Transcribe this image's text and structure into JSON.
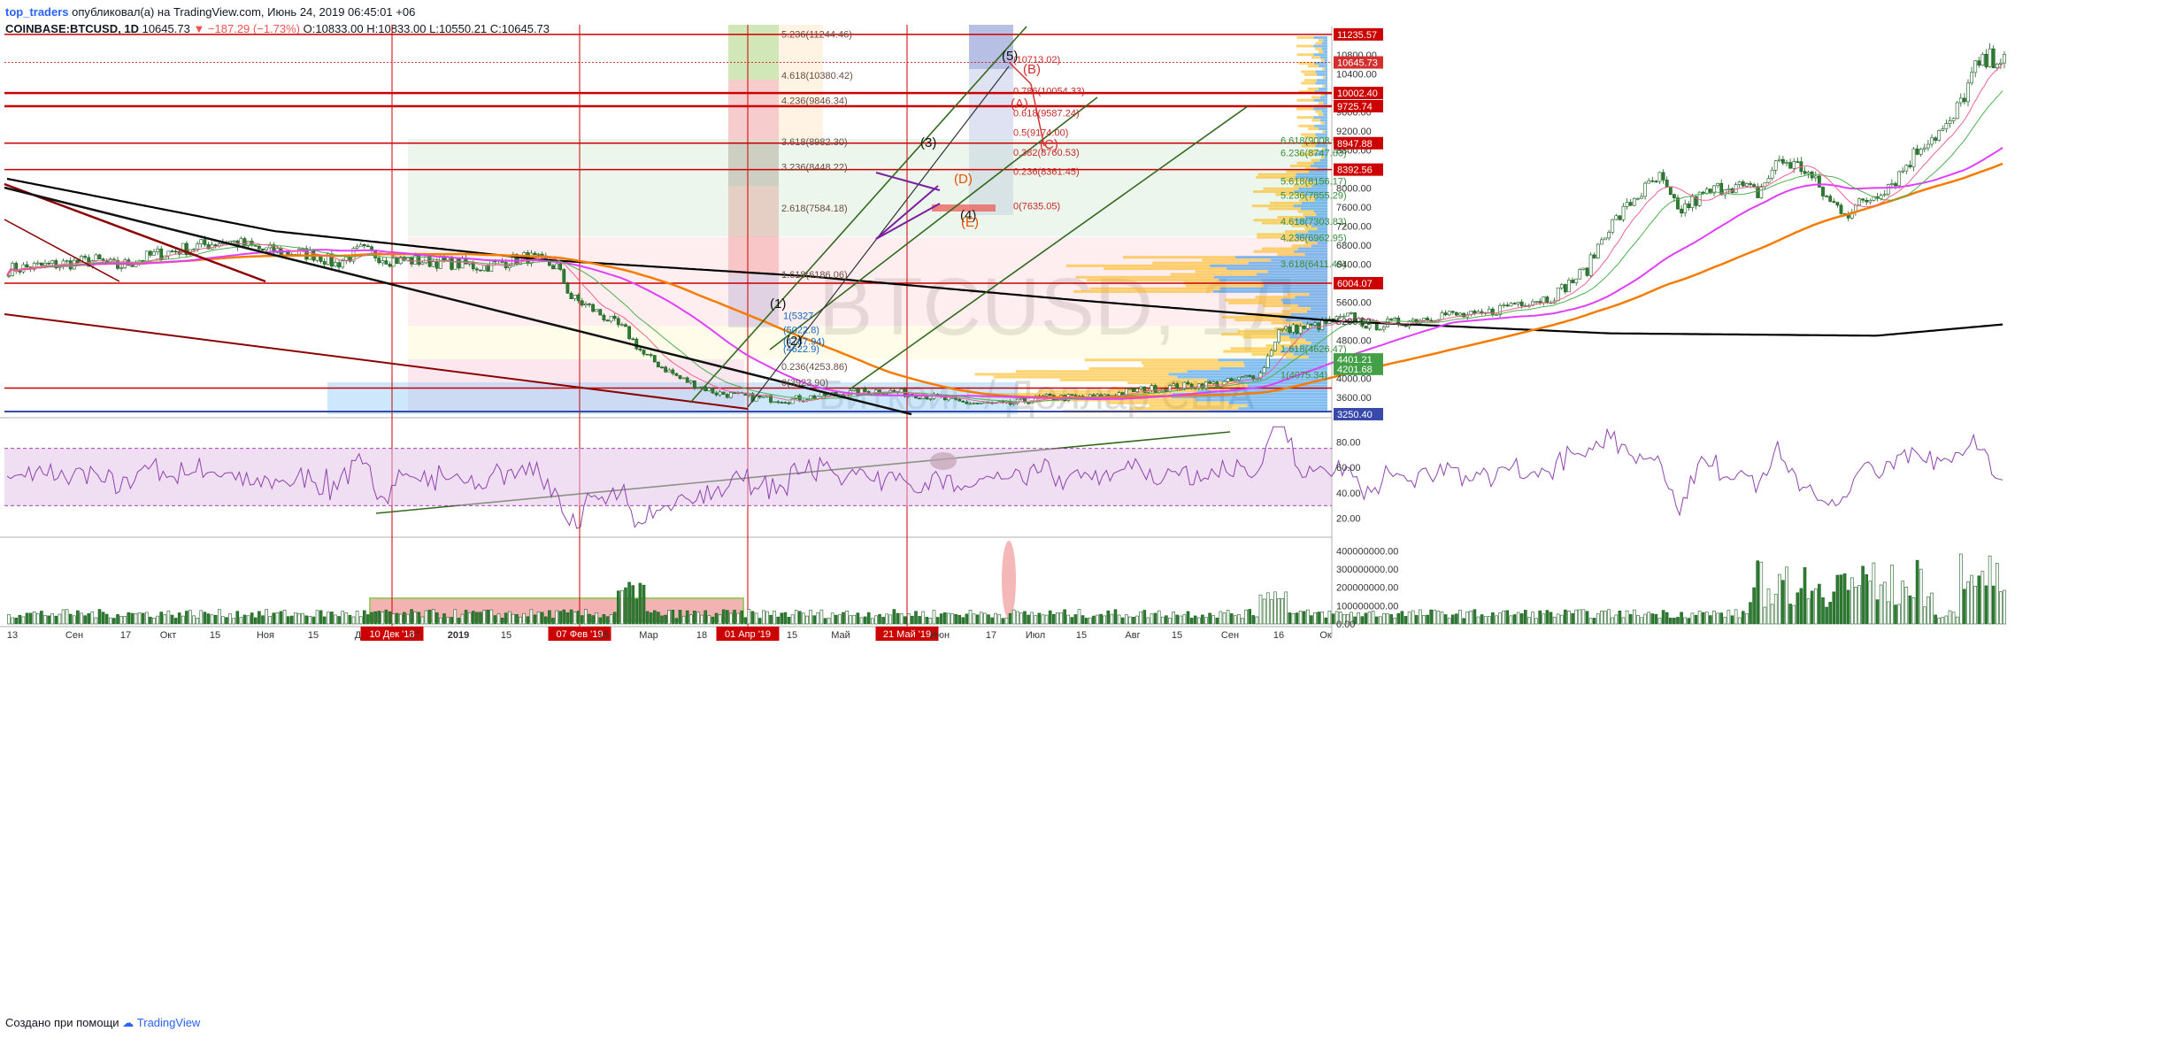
{
  "header": {
    "author": "top_traders",
    "published_text": "опубликовал(а) на TradingView.com, Июнь 24, 2019 06:45:01 +06",
    "symbol_line": "COINBASE:BTCUSD, 1D",
    "last_price": "10645.73",
    "change": "▼ −187.29 (−1.73%)",
    "o_label": "O:",
    "o_value": "10833.00",
    "h_label": "H:",
    "h_value": "10833.00",
    "l_label": "L:",
    "l_value": "10550.21",
    "c_label": "C:",
    "c_value": "10645.73"
  },
  "watermark": {
    "symbol": "BTCUSD, 1Д",
    "description": "Биткоин / Доллар США"
  },
  "footer": {
    "created_with": "Создано при помощи",
    "brand": "TradingView"
  },
  "colors": {
    "up_candle": "#26a69a",
    "down_candle": "#ef5350",
    "level_line": "#cc0000",
    "ma_black": "#000000",
    "ma_orange": "#f57c00",
    "ma_magenta": "#e040fb",
    "rsi_line": "#8e44ad",
    "trend_green": "#33691e",
    "price_tag": "#cc0000",
    "volume_profile_blue": "#1e88e5",
    "volume_profile_orange": "#ffb300"
  },
  "chart_data": [
    {
      "type": "candlestick",
      "name": "price",
      "ylim": [
        3250,
        11400
      ],
      "x_ticks": [
        "13",
        "Сен",
        "17",
        "Окт",
        "15",
        "Ноя",
        "15",
        "Дек",
        "10 Дек '18",
        "17",
        "2019",
        "15",
        "Ф",
        "07 Фев '19",
        "15",
        "Мар",
        "18",
        "01 Апр '19",
        "15",
        "Май",
        "1",
        "21 Май '19",
        "Июн",
        "17",
        "Июл",
        "15",
        "Авг",
        "15",
        "Сен",
        "16",
        "Ок"
      ],
      "y_ticks": [
        "10800.00",
        "10400.00",
        "9600.00",
        "9200.00",
        "8800.00",
        "8000.00",
        "7600.00",
        "7200.00",
        "6800.00",
        "6400.00",
        "5600.00",
        "5200.00",
        "4800.00",
        "4000.00",
        "3600.00"
      ],
      "price_tags": [
        {
          "value": 11235.57,
          "label": "11235.57"
        },
        {
          "value": 10645.73,
          "label": "10645.73"
        },
        {
          "value": 10002.4,
          "label": "10002.40"
        },
        {
          "value": 9725.74,
          "label": "9725.74"
        },
        {
          "value": 8947.88,
          "label": "8947.88"
        },
        {
          "value": 8392.56,
          "label": "8392.56"
        },
        {
          "value": 6004.07,
          "label": "6004.07"
        },
        {
          "value": 4401.21,
          "label": "4401.21"
        },
        {
          "value": 4201.68,
          "label": "4201.68"
        },
        {
          "value": 3250.4,
          "label": "3250.40"
        }
      ],
      "horizontal_levels": [
        11235.57,
        10002.4,
        9725.74,
        8947.88,
        8392.56,
        6004.07,
        3800.0
      ],
      "fib_extension_labels": [
        {
          "value": 11244.46,
          "label": "5.236(11244.46)"
        },
        {
          "value": 10380.42,
          "label": "4.618(10380.42)"
        },
        {
          "value": 9846.34,
          "label": "4.236(9846.34)"
        },
        {
          "value": 8982.3,
          "label": "3.618(8982.30)"
        },
        {
          "value": 8448.22,
          "label": "3.236(8448.22)"
        },
        {
          "value": 7584.18,
          "label": "2.618(7584.18)"
        },
        {
          "value": 6186.06,
          "label": "1.618(6186.06)"
        },
        {
          "value": 4253.86,
          "label": "0.236(4253.86)"
        },
        {
          "value": 3923.9,
          "label": "0(3923.90)"
        }
      ],
      "fib_retracement_labels": [
        {
          "value": 10713.02,
          "label": "(10713.02)"
        },
        {
          "value": 10054.33,
          "label": "0.786(10054.33)"
        },
        {
          "value": 9587.24,
          "label": "0.618(9587.24)"
        },
        {
          "value": 9174.0,
          "label": "0.5(9174.00)"
        },
        {
          "value": 8760.53,
          "label": "0.382(8760.53)"
        },
        {
          "value": 8361.45,
          "label": "0.236(8361.45)"
        },
        {
          "value": 7635.05,
          "label": "0(7635.05)"
        }
      ],
      "fib_right_labels": [
        {
          "value": 9008.51,
          "label": "6.618(9008.51)"
        },
        {
          "value": 8747.63,
          "label": "6.236(8747.63)"
        },
        {
          "value": 8156.17,
          "label": "5.618(8156.17)"
        },
        {
          "value": 7855.29,
          "label": "5.236(7855.29)"
        },
        {
          "value": 7303.83,
          "label": "4.618(7303.83)"
        },
        {
          "value": 6962.95,
          "label": "4.236(6962.95)"
        },
        {
          "value": 6411.49,
          "label": "3.618(6411.49)"
        },
        {
          "value": 4626.47,
          "label": "1.618(4626.47)"
        },
        {
          "value": 4075.34,
          "label": "1(4075.34)"
        }
      ],
      "left_fib_labels": [
        {
          "value": 5327.0,
          "label": "1(5327"
        },
        {
          "value": 5022.8,
          "label": "(5022.8)"
        },
        {
          "value": 4787.94,
          "label": "(4787.94)"
        },
        {
          "value": 4622.9,
          "label": "(4622.9)"
        }
      ],
      "wave_labels": [
        "(1)",
        "(2)",
        "(3)",
        "(4)",
        "(5)",
        "(A)",
        "(B)",
        "(C)",
        "(D)",
        "(E)"
      ],
      "series": [
        {
          "name": "",
          "kind": "ma_black",
          "x": [
            0,
            40,
            80,
            120,
            160,
            200,
            240,
            280,
            300
          ],
          "y": [
            8200,
            7100,
            6500,
            6150,
            5650,
            5200,
            4950,
            4900,
            5150
          ]
        }
      ]
    },
    {
      "type": "line",
      "name": "rsi",
      "ylim": [
        10,
        95
      ],
      "y_ticks": [
        "80.00",
        "60.00",
        "40.00",
        "20.00"
      ],
      "band": [
        30,
        75
      ]
    },
    {
      "type": "bar",
      "name": "volume",
      "ylim": [
        0,
        450000000
      ],
      "y_ticks": [
        "400000000.00",
        "300000000.00",
        "200000000.00",
        "100000000.00",
        "0.00"
      ]
    }
  ]
}
